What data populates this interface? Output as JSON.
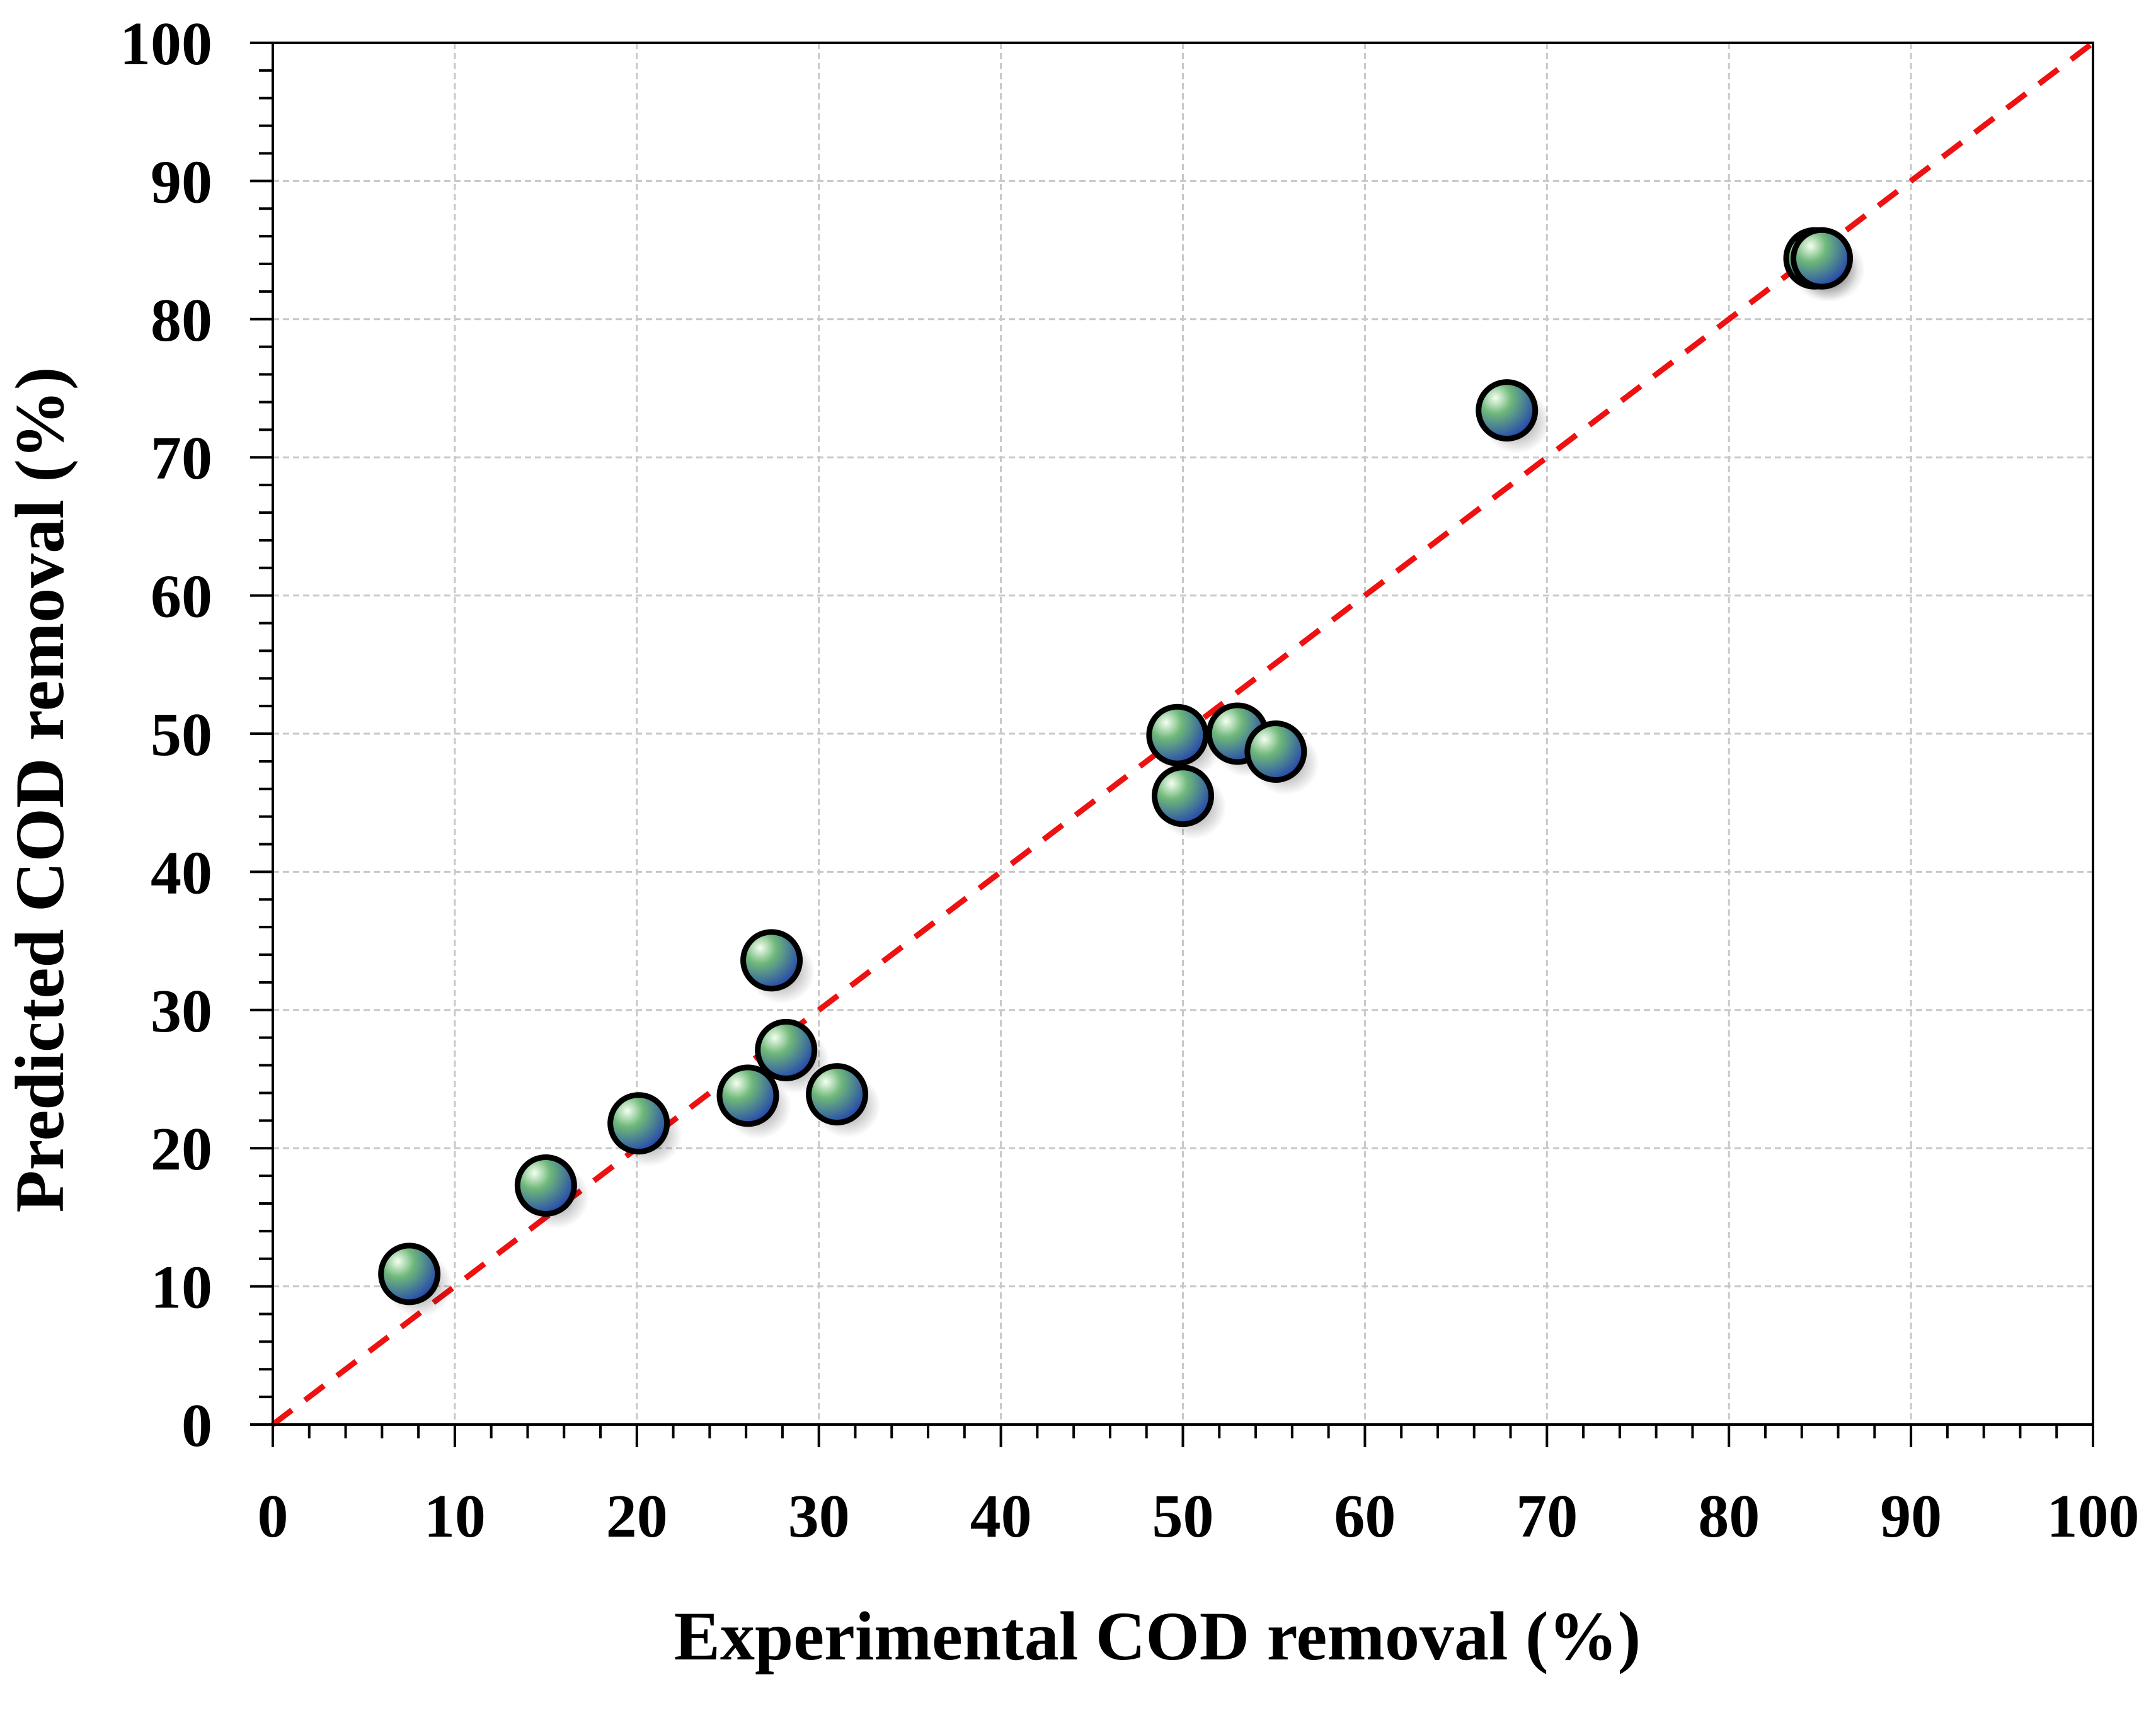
{
  "chart_data": {
    "type": "scatter",
    "title": "",
    "xlabel": "Experimental COD removal (%)",
    "ylabel": "Predicted COD removal (%)",
    "xlim": [
      0,
      100
    ],
    "ylim": [
      0,
      100
    ],
    "xticks": [
      0,
      10,
      20,
      30,
      40,
      50,
      60,
      70,
      80,
      90,
      100
    ],
    "yticks": [
      0,
      10,
      20,
      30,
      40,
      50,
      60,
      70,
      80,
      90,
      100
    ],
    "xtick_labels": [
      "0",
      "10",
      "20",
      "30",
      "40",
      "50",
      "60",
      "70",
      "80",
      "90",
      "100"
    ],
    "ytick_labels": [
      "0",
      "10",
      "20",
      "30",
      "40",
      "50",
      "60",
      "70",
      "80",
      "90",
      "100"
    ],
    "grid": true,
    "reference_line": {
      "type": "y=x",
      "style": "dashed",
      "color": "#ee1111"
    },
    "marker_colors": {
      "fill_light": "#f4fff0",
      "fill_mid": "#6fb87a",
      "fill_dark": "#1f3fb0",
      "edge": "#000000"
    },
    "series": [
      {
        "name": "COD removal",
        "points": [
          {
            "x": 7.5,
            "y": 10.9
          },
          {
            "x": 15.0,
            "y": 17.3
          },
          {
            "x": 20.1,
            "y": 21.8
          },
          {
            "x": 26.1,
            "y": 23.8
          },
          {
            "x": 28.2,
            "y": 27.1
          },
          {
            "x": 27.4,
            "y": 33.6
          },
          {
            "x": 31.0,
            "y": 23.9
          },
          {
            "x": 49.7,
            "y": 49.9
          },
          {
            "x": 50.0,
            "y": 45.5
          },
          {
            "x": 53.0,
            "y": 50.0
          },
          {
            "x": 55.1,
            "y": 48.7
          },
          {
            "x": 67.8,
            "y": 73.4
          },
          {
            "x": 84.7,
            "y": 84.4
          },
          {
            "x": 85.1,
            "y": 84.4
          }
        ]
      }
    ]
  }
}
